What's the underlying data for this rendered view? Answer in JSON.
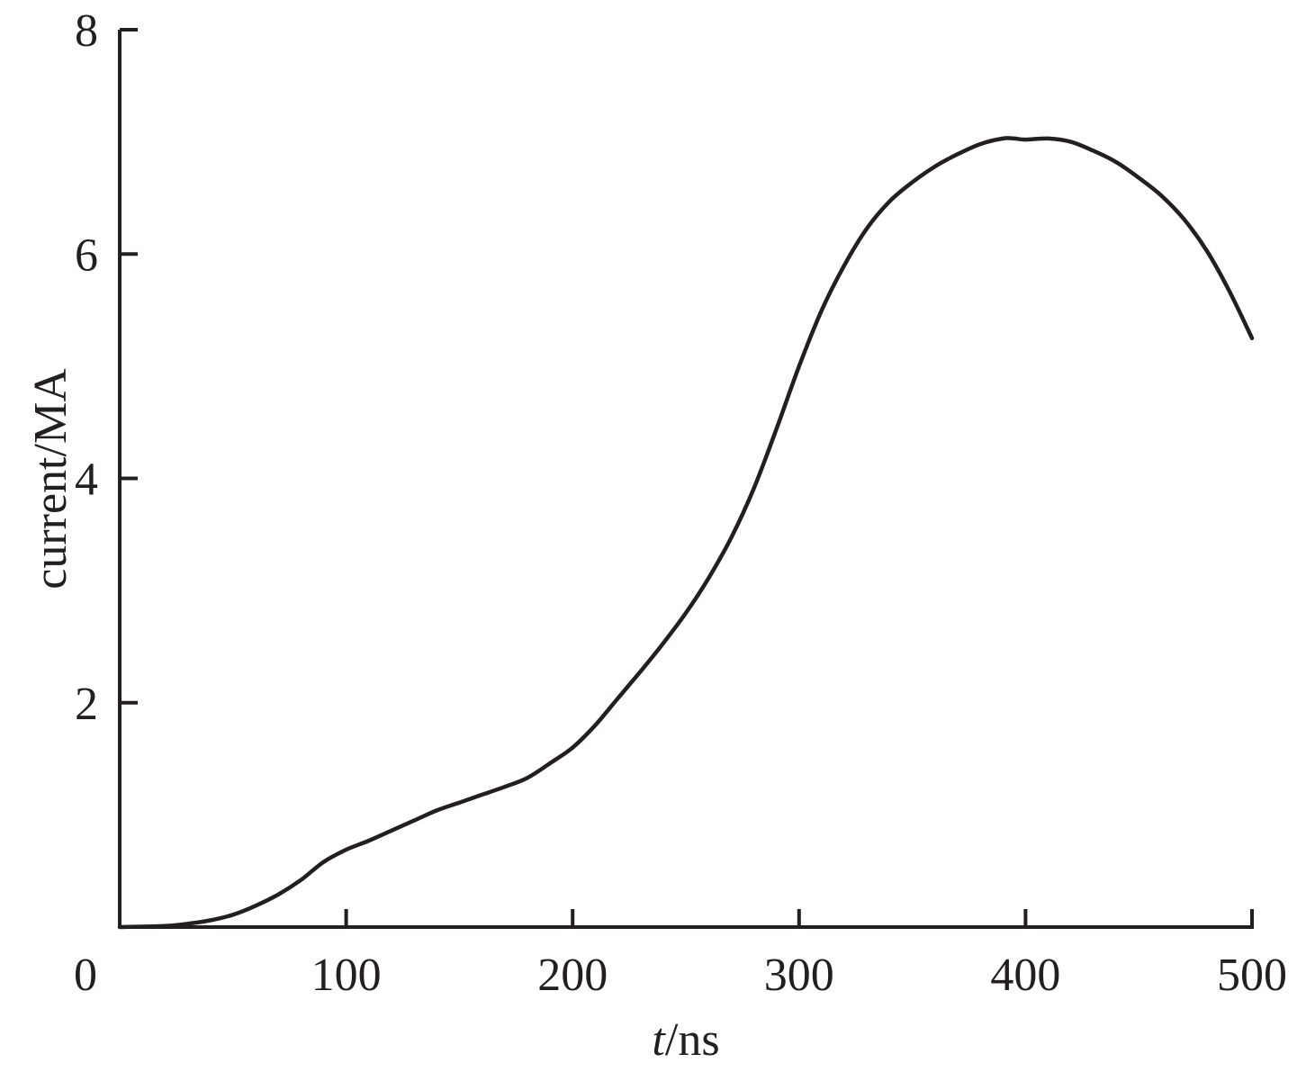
{
  "chart_data": {
    "type": "line",
    "title": "",
    "xlabel": {
      "italic": "t",
      "rest": "/ns"
    },
    "ylabel": "current/MA",
    "xlim": [
      0,
      500
    ],
    "ylim": [
      0,
      8
    ],
    "xticks": [
      0,
      100,
      200,
      300,
      400,
      500
    ],
    "xtick_labels": [
      "0",
      "100",
      "200",
      "300",
      "400",
      "500"
    ],
    "yticks": [
      2,
      4,
      6,
      8
    ],
    "ytick_labels": [
      "2",
      "4",
      "6",
      "8"
    ],
    "grid": false,
    "legend": "none",
    "line_color": "#231f20",
    "series": [
      {
        "x": [
          0,
          20,
          30,
          40,
          50,
          60,
          70,
          80,
          90,
          100,
          110,
          120,
          130,
          140,
          150,
          160,
          170,
          180,
          190,
          200,
          210,
          220,
          230,
          240,
          250,
          260,
          270,
          280,
          290,
          300,
          310,
          320,
          330,
          340,
          350,
          360,
          370,
          380,
          390,
          395,
          400,
          410,
          420,
          430,
          440,
          450,
          460,
          470,
          480,
          490,
          500
        ],
        "y": [
          0,
          0.01,
          0.03,
          0.06,
          0.11,
          0.19,
          0.29,
          0.42,
          0.58,
          0.69,
          0.77,
          0.86,
          0.95,
          1.04,
          1.11,
          1.18,
          1.25,
          1.33,
          1.46,
          1.6,
          1.8,
          2.04,
          2.28,
          2.53,
          2.8,
          3.11,
          3.47,
          3.91,
          4.44,
          5.0,
          5.5,
          5.9,
          6.23,
          6.47,
          6.64,
          6.78,
          6.89,
          6.98,
          7.03,
          7.03,
          7.02,
          7.03,
          7.0,
          6.92,
          6.82,
          6.68,
          6.52,
          6.31,
          6.03,
          5.67,
          5.25
        ]
      }
    ]
  }
}
